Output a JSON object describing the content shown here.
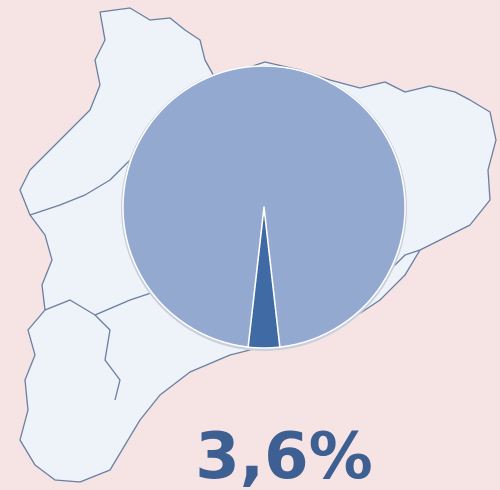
{
  "chart_data": {
    "type": "pie",
    "values": [
      3.6,
      96.4
    ],
    "value_labels": [
      "3,6%",
      null
    ],
    "colors": [
      "#3f6aa3",
      "#94a9d0"
    ]
  }
}
